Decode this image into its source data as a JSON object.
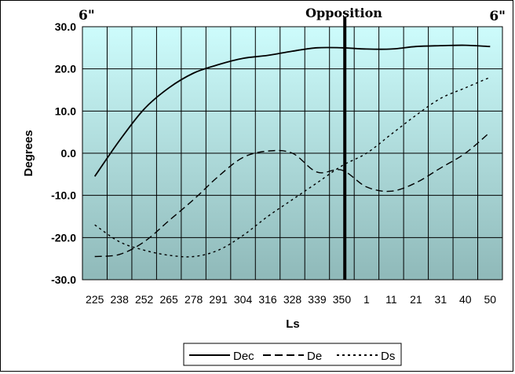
{
  "chart_data": {
    "type": "line",
    "xlabel": "Ls",
    "ylabel": "Degrees",
    "ylim": [
      -30,
      30
    ],
    "y_ticks": [
      30,
      20,
      10,
      0,
      -10,
      -20,
      -30
    ],
    "y_tick_labels": [
      "30.0",
      "20.0",
      "10.0",
      "0.0",
      "-10.0",
      "-20.0",
      "-30.0"
    ],
    "categories": [
      "225",
      "238",
      "252",
      "265",
      "278",
      "291",
      "304",
      "316",
      "328",
      "339",
      "350",
      "1",
      "11",
      "21",
      "31",
      "40",
      "50"
    ],
    "grid": true,
    "legend_position": "bottom",
    "annotations": {
      "left": "6\"",
      "opposition": "Opposition",
      "right": "6\""
    },
    "opposition_index": 10.12,
    "series": [
      {
        "name": "Dec",
        "dash": "solid",
        "values": [
          -5.5,
          3.0,
          10.5,
          15.5,
          19.0,
          21.0,
          22.5,
          23.2,
          24.2,
          25.0,
          25.0,
          24.7,
          24.7,
          25.3,
          25.5,
          25.6,
          25.3
        ]
      },
      {
        "name": "De",
        "dash": "dashed",
        "values": [
          -24.5,
          -24.0,
          -21.0,
          -16.0,
          -11.0,
          -5.5,
          -1.0,
          0.5,
          0.0,
          -4.5,
          -4.0,
          -8.0,
          -9.0,
          -7.0,
          -3.5,
          0.0,
          5.0
        ]
      },
      {
        "name": "Ds",
        "dash": "dotted",
        "values": [
          -17.0,
          -21.0,
          -23.0,
          -24.2,
          -24.5,
          -23.0,
          -19.5,
          -15.0,
          -11.0,
          -7.0,
          -3.0,
          0.0,
          4.5,
          9.0,
          13.0,
          15.5,
          18.0
        ]
      }
    ]
  }
}
